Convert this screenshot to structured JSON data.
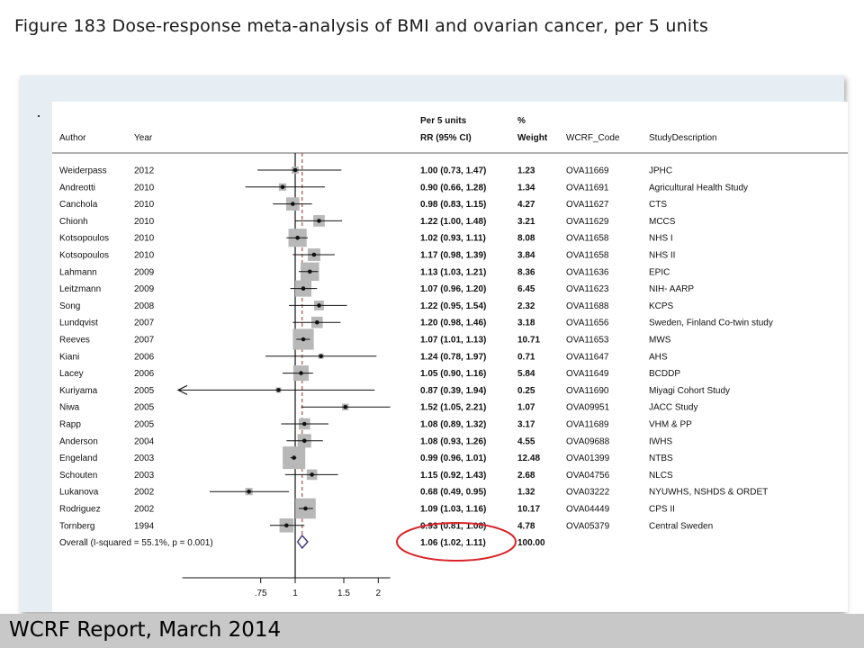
{
  "title": "Figure 183 Dose-response meta-analysis of BMI and ovarian cancer, per 5 units",
  "footer": "WCRF Report, March 2014",
  "headers": {
    "author": "Author",
    "year": "Year",
    "rr_top": "Per 5 units",
    "rr": "RR (95% CI)",
    "weight_top": "%",
    "weight": "Weight",
    "code": "WCRF_Code",
    "desc": "StudyDescription"
  },
  "colors": {
    "highlight": "#d9232a",
    "box": "#b8b8b8",
    "diamond": "#3b2f7a",
    "refline": "#9b2a2a"
  },
  "chart_data": {
    "type": "forest",
    "xaxis_ticks": [
      {
        "value": 0.75,
        "label": ".75"
      },
      {
        "value": 1,
        "label": "1"
      },
      {
        "value": 1.5,
        "label": "1.5"
      },
      {
        "value": 2,
        "label": "2"
      }
    ],
    "scale": "log",
    "xlim": [
      0.39,
      2.21
    ],
    "null_line": 1,
    "overall_line": 1.06,
    "studies": [
      {
        "author": "Weiderpass",
        "year": "2012",
        "rr": 1.0,
        "lo": 0.73,
        "hi": 1.47,
        "rr_text": "1.00 (0.73, 1.47)",
        "weight": "1.23",
        "code": "OVA11669",
        "desc": "JPHC"
      },
      {
        "author": "Andreotti",
        "year": "2010",
        "rr": 0.9,
        "lo": 0.66,
        "hi": 1.28,
        "rr_text": "0.90 (0.66, 1.28)",
        "weight": "1.34",
        "code": "OVA11691",
        "desc": "Agricultural Health Study"
      },
      {
        "author": "Canchola",
        "year": "2010",
        "rr": 0.98,
        "lo": 0.83,
        "hi": 1.15,
        "rr_text": "0.98 (0.83, 1.15)",
        "weight": "4.27",
        "code": "OVA11627",
        "desc": "CTS"
      },
      {
        "author": "Chionh",
        "year": "2010",
        "rr": 1.22,
        "lo": 1.0,
        "hi": 1.48,
        "rr_text": "1.22 (1.00, 1.48)",
        "weight": "3.21",
        "code": "OVA11629",
        "desc": "MCCS"
      },
      {
        "author": "Kotsopoulos",
        "year": "2010",
        "rr": 1.02,
        "lo": 0.93,
        "hi": 1.11,
        "rr_text": "1.02 (0.93, 1.11)",
        "weight": "8.08",
        "code": "OVA11658",
        "desc": "NHS I"
      },
      {
        "author": "Kotsopoulos",
        "year": "2010",
        "rr": 1.17,
        "lo": 0.98,
        "hi": 1.39,
        "rr_text": "1.17 (0.98, 1.39)",
        "weight": "3.84",
        "code": "OVA11658",
        "desc": "NHS II"
      },
      {
        "author": "Lahmann",
        "year": "2009",
        "rr": 1.13,
        "lo": 1.03,
        "hi": 1.21,
        "rr_text": "1.13 (1.03, 1.21)",
        "weight": "8.36",
        "code": "OVA11636",
        "desc": "EPIC"
      },
      {
        "author": "Leitzmann",
        "year": "2009",
        "rr": 1.07,
        "lo": 0.96,
        "hi": 1.2,
        "rr_text": "1.07 (0.96, 1.20)",
        "weight": "6.45",
        "code": "OVA11623",
        "desc": "NIH- AARP"
      },
      {
        "author": "Song",
        "year": "2008",
        "rr": 1.22,
        "lo": 0.95,
        "hi": 1.54,
        "rr_text": "1.22 (0.95, 1.54)",
        "weight": "2.32",
        "code": "OVA11688",
        "desc": "KCPS"
      },
      {
        "author": "Lundqvist",
        "year": "2007",
        "rr": 1.2,
        "lo": 0.98,
        "hi": 1.46,
        "rr_text": "1.20 (0.98, 1.46)",
        "weight": "3.18",
        "code": "OVA11656",
        "desc": "Sweden, Finland Co-twin study"
      },
      {
        "author": "Reeves",
        "year": "2007",
        "rr": 1.07,
        "lo": 1.01,
        "hi": 1.13,
        "rr_text": "1.07 (1.01, 1.13)",
        "weight": "10.71",
        "code": "OVA11653",
        "desc": "MWS"
      },
      {
        "author": "Kiani",
        "year": "2006",
        "rr": 1.24,
        "lo": 0.78,
        "hi": 1.97,
        "rr_text": "1.24 (0.78, 1.97)",
        "weight": "0.71",
        "code": "OVA11647",
        "desc": "AHS"
      },
      {
        "author": "Lacey",
        "year": "2006",
        "rr": 1.05,
        "lo": 0.9,
        "hi": 1.16,
        "rr_text": "1.05 (0.90, 1.16)",
        "weight": "5.84",
        "code": "OVA11649",
        "desc": "BCDDP"
      },
      {
        "author": "Kuriyama",
        "year": "2005",
        "rr": 0.87,
        "lo": 0.39,
        "hi": 1.94,
        "rr_text": "0.87 (0.39, 1.94)",
        "weight": "0.25",
        "code": "OVA11690",
        "desc": "Miyagi Cohort Study",
        "arrow_left": true
      },
      {
        "author": "Niwa",
        "year": "2005",
        "rr": 1.52,
        "lo": 1.05,
        "hi": 2.21,
        "rr_text": "1.52 (1.05, 2.21)",
        "weight": "1.07",
        "code": "OVA09951",
        "desc": "JACC Study"
      },
      {
        "author": "Rapp",
        "year": "2005",
        "rr": 1.08,
        "lo": 0.89,
        "hi": 1.32,
        "rr_text": "1.08 (0.89, 1.32)",
        "weight": "3.17",
        "code": "OVA11689",
        "desc": "VHM & PP"
      },
      {
        "author": "Anderson",
        "year": "2004",
        "rr": 1.08,
        "lo": 0.93,
        "hi": 1.26,
        "rr_text": "1.08 (0.93, 1.26)",
        "weight": "4.55",
        "code": "OVA09688",
        "desc": "IWHS"
      },
      {
        "author": "Engeland",
        "year": "2003",
        "rr": 0.99,
        "lo": 0.96,
        "hi": 1.01,
        "rr_text": "0.99 (0.96, 1.01)",
        "weight": "12.48",
        "code": "OVA01399",
        "desc": "NTBS"
      },
      {
        "author": "Schouten",
        "year": "2003",
        "rr": 1.15,
        "lo": 0.92,
        "hi": 1.43,
        "rr_text": "1.15 (0.92, 1.43)",
        "weight": "2.68",
        "code": "OVA04756",
        "desc": "NLCS"
      },
      {
        "author": "Lukanova",
        "year": "2002",
        "rr": 0.68,
        "lo": 0.49,
        "hi": 0.95,
        "rr_text": "0.68 (0.49, 0.95)",
        "weight": "1.32",
        "code": "OVA03222",
        "desc": "NYUWHS, NSHDS & ORDET"
      },
      {
        "author": "Rodriguez",
        "year": "2002",
        "rr": 1.09,
        "lo": 1.03,
        "hi": 1.16,
        "rr_text": "1.09 (1.03, 1.16)",
        "weight": "10.17",
        "code": "OVA04449",
        "desc": "CPS II"
      },
      {
        "author": "Tornberg",
        "year": "1994",
        "rr": 0.93,
        "lo": 0.81,
        "hi": 1.08,
        "rr_text": "0.93 (0.81, 1.08)",
        "weight": "4.78",
        "code": "OVA05379",
        "desc": "Central Sweden"
      }
    ],
    "overall": {
      "label": "Overall  (I-squared = 55.1%, p = 0.001)",
      "rr": 1.06,
      "lo": 1.02,
      "hi": 1.11,
      "rr_text": "1.06 (1.02, 1.11)",
      "weight": "100.00"
    }
  }
}
